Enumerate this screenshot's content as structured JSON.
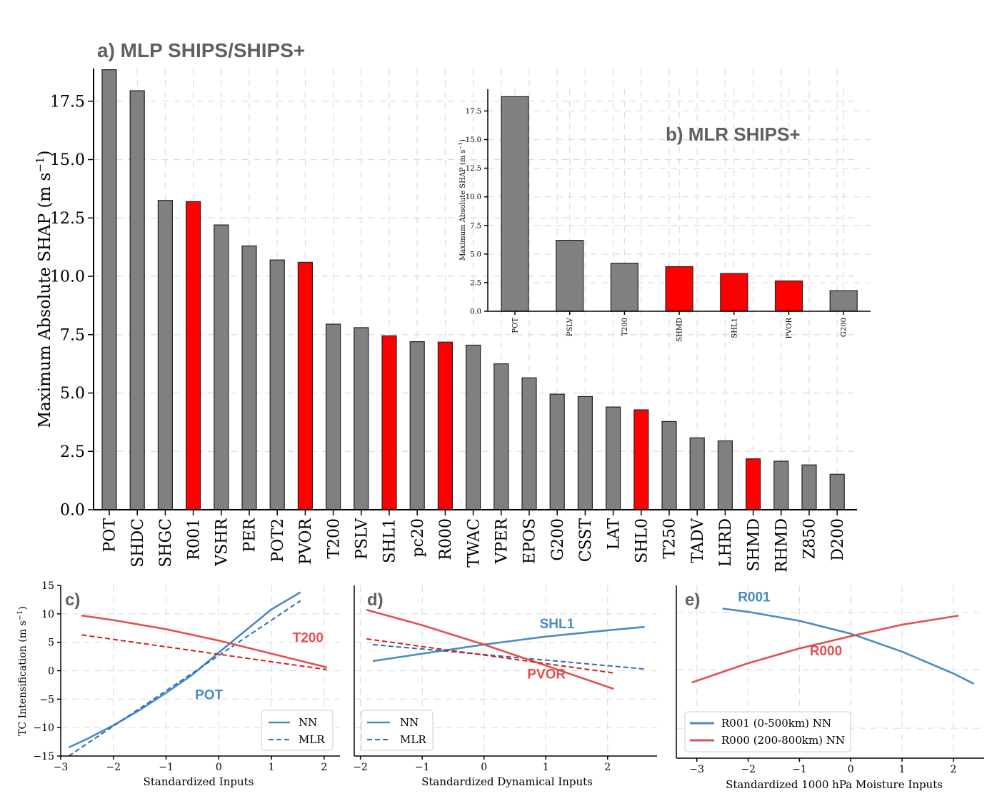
{
  "chart_data": [
    {
      "panel": "a",
      "type": "bar",
      "title": "a) MLP SHIPS/SHIPS+",
      "ylabel": "Maximum Absolute SHAP (m s",
      "ylabel_sup": "−1",
      "ylabel_close": ")",
      "ylim": [
        0,
        18.9
      ],
      "yticks": [
        "0.0",
        "2.5",
        "5.0",
        "7.5",
        "10.0",
        "12.5",
        "15.0",
        "17.5"
      ],
      "categories": [
        "POT",
        "SHDC",
        "SHGC",
        "R001",
        "VSHR",
        "PER",
        "POT2",
        "PVOR",
        "T200",
        "PSLV",
        "SHL1",
        "pc20",
        "R000",
        "TWAC",
        "VPER",
        "EPOS",
        "G200",
        "CSST",
        "LAT",
        "SHL0",
        "T250",
        "TADV",
        "LHRD",
        "SHMD",
        "RHMD",
        "Z850",
        "D200"
      ],
      "values": [
        18.85,
        17.95,
        13.25,
        13.2,
        12.2,
        11.3,
        10.7,
        10.6,
        7.95,
        7.8,
        7.45,
        7.2,
        7.18,
        7.05,
        6.25,
        5.65,
        4.95,
        4.85,
        4.4,
        4.28,
        3.78,
        3.08,
        2.95,
        2.18,
        2.08,
        1.92,
        1.52
      ],
      "highlight": [
        false,
        false,
        false,
        true,
        false,
        false,
        false,
        true,
        false,
        false,
        true,
        false,
        true,
        false,
        false,
        false,
        false,
        false,
        false,
        true,
        false,
        false,
        false,
        true,
        false,
        false,
        false
      ],
      "colors": {
        "gray": "#808080",
        "red": "#ff0000"
      },
      "grid": true
    },
    {
      "panel": "b",
      "type": "bar",
      "title": "b) MLR SHIPS+",
      "ylabel": "Maximum Absolute SHAP (m s",
      "ylabel_sup": "−1",
      "ylabel_close": ")",
      "ylim": [
        0,
        19.4
      ],
      "yticks": [
        "0.0",
        "2.5",
        "5.0",
        "7.5",
        "10.0",
        "12.5",
        "15.0",
        "17.5"
      ],
      "categories": [
        "POT",
        "PSLV",
        "T200",
        "SHMD",
        "SHL1",
        "PVOR",
        "G200"
      ],
      "values": [
        18.75,
        6.2,
        4.2,
        3.9,
        3.3,
        2.65,
        1.8
      ],
      "highlight": [
        false,
        false,
        false,
        true,
        true,
        true,
        false
      ],
      "grid": true
    },
    {
      "panel": "c",
      "type": "line",
      "label": "c)",
      "xlabel": "Standardized Inputs",
      "ylabel": "TC Intensification (m s",
      "ylabel_sup": "−1",
      "ylabel_close": ")",
      "xlim": [
        -3,
        2.3
      ],
      "ylim": [
        -15,
        15
      ],
      "xticks": [
        "−3",
        "−2",
        "−1",
        "0",
        "1",
        "2"
      ],
      "yticks": [
        "−15",
        "−10",
        "−5",
        "0",
        "5",
        "10",
        "15"
      ],
      "series": [
        {
          "name": "POT NN",
          "color": "#4a8ac4",
          "dash": false,
          "x": [
            -2.85,
            -2.5,
            -2.0,
            -1.5,
            -1.0,
            -0.5,
            0.0,
            0.5,
            1.0,
            1.55
          ],
          "y": [
            -13.5,
            -12.0,
            -9.6,
            -6.9,
            -3.9,
            -0.7,
            3.2,
            7.0,
            10.8,
            13.8
          ]
        },
        {
          "name": "POT MLR",
          "color": "#2e6fb0",
          "dash": true,
          "x": [
            -2.85,
            2.0,
            1.55
          ],
          "y": [
            -15.0,
            null,
            12.3
          ]
        },
        {
          "name": "T200 NN",
          "color": "#e05050",
          "dash": false,
          "x": [
            -2.6,
            -2.0,
            -1.0,
            0.0,
            1.0,
            2.05
          ],
          "y": [
            9.7,
            8.9,
            7.3,
            5.3,
            3.0,
            0.6
          ]
        },
        {
          "name": "T200 MLR",
          "color": "#d02020",
          "dash": true,
          "x": [
            -2.6,
            2.05
          ],
          "y": [
            6.3,
            0.2
          ]
        }
      ],
      "annotations": [
        {
          "text": "T200",
          "x": 1.4,
          "y": 5.0,
          "color": "#e05050"
        },
        {
          "text": "POT",
          "x": -0.45,
          "y": -5.0,
          "color": "#4a8ac4"
        }
      ],
      "legend": {
        "position": "lower-right",
        "entries": [
          {
            "label": "NN",
            "dash": false
          },
          {
            "label": "MLR",
            "dash": true
          }
        ]
      }
    },
    {
      "panel": "d",
      "type": "line",
      "label": "d)",
      "xlabel": "Standardized Dynamical Inputs",
      "xlim": [
        -2.1,
        2.8
      ],
      "ylim": [
        -15,
        15
      ],
      "xticks": [
        "−2",
        "−1",
        "0",
        "1",
        "2"
      ],
      "series": [
        {
          "name": "SHL1 NN",
          "color": "#4a8ac4",
          "dash": false,
          "x": [
            -1.8,
            -1.0,
            0.0,
            1.0,
            2.0,
            2.6
          ],
          "y": [
            1.7,
            3.0,
            4.6,
            6.0,
            7.1,
            7.7
          ]
        },
        {
          "name": "SHL1 MLR",
          "color": "#2e6fb0",
          "dash": true,
          "x": [
            -1.8,
            2.6
          ],
          "y": [
            4.6,
            0.3
          ]
        },
        {
          "name": "PVOR NN",
          "color": "#e05050",
          "dash": false,
          "x": [
            -1.9,
            -1.0,
            0.0,
            1.0,
            2.1
          ],
          "y": [
            10.7,
            8.0,
            4.6,
            0.9,
            -3.2
          ]
        },
        {
          "name": "PVOR MLR",
          "color": "#d02020",
          "dash": true,
          "x": [
            -1.9,
            2.1
          ],
          "y": [
            5.6,
            -0.4
          ]
        }
      ],
      "annotations": [
        {
          "text": "SHL1",
          "x": 0.9,
          "y": 7.5,
          "color": "#4a8ac4"
        },
        {
          "text": "PVOR",
          "x": 0.7,
          "y": -1.4,
          "color": "#e05050"
        }
      ],
      "legend": {
        "position": "lower-left",
        "entries": [
          {
            "label": "NN",
            "dash": false
          },
          {
            "label": "MLR",
            "dash": true
          }
        ]
      }
    },
    {
      "panel": "e",
      "type": "line",
      "label": "e)",
      "xlabel": "Standardized 1000 hPa Moisture Inputs",
      "xlim": [
        -3.4,
        2.6
      ],
      "xticks": [
        "−3",
        "−2",
        "−1",
        "0",
        "1",
        "2"
      ],
      "series": [
        {
          "name": "R001 (0-500km) NN",
          "color": "#4a8ac4",
          "x": [
            -2.5,
            -2.0,
            -1.0,
            0.0,
            1.0,
            2.0,
            2.4
          ],
          "y": [
            0.95,
            0.9,
            0.76,
            0.56,
            0.28,
            -0.06,
            -0.22
          ]
        },
        {
          "name": "R000 (200-800km) NN",
          "color": "#e05050",
          "x": [
            -3.1,
            -2.0,
            -1.0,
            0.0,
            1.0,
            2.1
          ],
          "y": [
            -0.2,
            0.1,
            0.33,
            0.52,
            0.7,
            0.84
          ]
        }
      ],
      "annotations": [
        {
          "text": "R001",
          "x": -2.2,
          "y": 1.06,
          "color": "#4a8ac4"
        },
        {
          "text": "R000",
          "x": -0.8,
          "y": 0.22,
          "color": "#e05050"
        }
      ],
      "legend": {
        "position": "lower-left",
        "entries": [
          {
            "label": "R001 (0-500km) NN",
            "color": "#4a8ac4"
          },
          {
            "label": "R000 (200-800km) NN",
            "color": "#e05050"
          }
        ]
      }
    }
  ]
}
